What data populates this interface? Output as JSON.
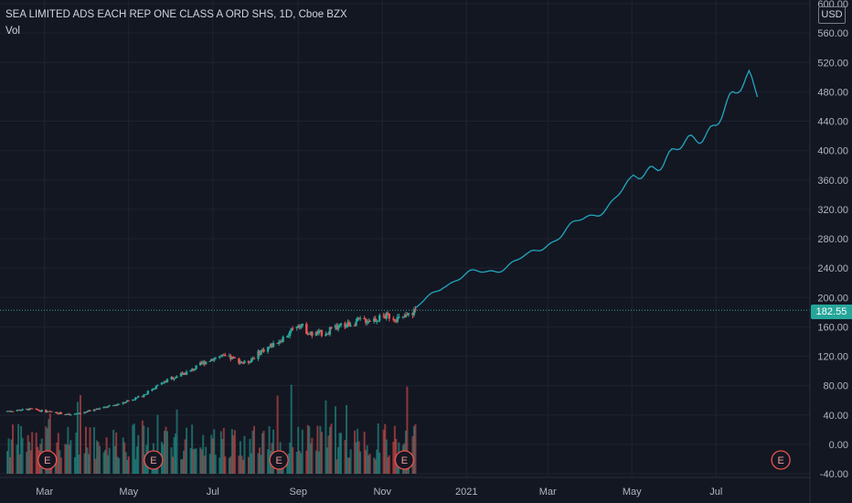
{
  "header": {
    "title": "SEA LIMITED ADS EACH REP ONE CLASS A ORD SHS, 1D, Cboe BZX",
    "volume_label": "Vol"
  },
  "price_axis": {
    "currency": "USD",
    "ticks": [
      "600.00",
      "560.00",
      "520.00",
      "480.00",
      "440.00",
      "400.00",
      "360.00",
      "320.00",
      "280.00",
      "240.00",
      "200.00",
      "160.00",
      "120.00",
      "80.00",
      "40.00",
      "0.00",
      "-40.00"
    ],
    "current_price": "182.55"
  },
  "time_axis": {
    "ticks": [
      "Mar",
      "May",
      "Jul",
      "Sep",
      "Nov",
      "2021",
      "Mar",
      "May",
      "Jul"
    ]
  },
  "events": {
    "marker_label": "E",
    "count": 5
  },
  "colors": {
    "background": "#131722",
    "grid": "#1f2330",
    "up": "#26a69a",
    "down": "#ef5350",
    "forecast": "#22a7c0",
    "axis_text": "#b2b5be"
  },
  "chart_data": {
    "type": "candlestick",
    "title": "SEA LIMITED ADS EACH REP ONE CLASS A ORD SHS, 1D, Cboe BZX",
    "ylim": [
      -40,
      600
    ],
    "y_unit": "USD",
    "current_price": 182.55,
    "series": [
      {
        "name": "Price",
        "type": "candlestick-close-approx",
        "points": [
          [
            "2020-02-01",
            45
          ],
          [
            "2020-02-20",
            48
          ],
          [
            "2020-03-01",
            45
          ],
          [
            "2020-03-10",
            43
          ],
          [
            "2020-03-20",
            40
          ],
          [
            "2020-04-01",
            45
          ],
          [
            "2020-04-20",
            53
          ],
          [
            "2020-05-01",
            60
          ],
          [
            "2020-05-10",
            65
          ],
          [
            "2020-05-20",
            78
          ],
          [
            "2020-06-01",
            90
          ],
          [
            "2020-06-15",
            100
          ],
          [
            "2020-06-25",
            112
          ],
          [
            "2020-07-05",
            120
          ],
          [
            "2020-07-15",
            117
          ],
          [
            "2020-07-25",
            110
          ],
          [
            "2020-08-05",
            127
          ],
          [
            "2020-08-15",
            137
          ],
          [
            "2020-08-25",
            150
          ],
          [
            "2020-09-01",
            165
          ],
          [
            "2020-09-10",
            150
          ],
          [
            "2020-09-20",
            152
          ],
          [
            "2020-10-01",
            160
          ],
          [
            "2020-10-15",
            168
          ],
          [
            "2020-10-25",
            170
          ],
          [
            "2020-11-05",
            175
          ],
          [
            "2020-11-15",
            170
          ],
          [
            "2020-11-25",
            182.55
          ]
        ]
      },
      {
        "name": "Forecast",
        "type": "line",
        "points": [
          [
            "2020-11-25",
            182.55
          ],
          [
            "2020-12-15",
            218
          ],
          [
            "2021-01-01",
            230
          ],
          [
            "2021-01-15",
            235
          ],
          [
            "2021-02-01",
            245
          ],
          [
            "2021-02-15",
            255
          ],
          [
            "2021-03-01",
            275
          ],
          [
            "2021-03-15",
            292
          ],
          [
            "2021-04-01",
            310
          ],
          [
            "2021-04-15",
            330
          ],
          [
            "2021-05-01",
            355
          ],
          [
            "2021-05-15",
            380
          ],
          [
            "2021-06-01",
            395
          ],
          [
            "2021-06-15",
            415
          ],
          [
            "2021-07-01",
            440
          ],
          [
            "2021-07-15",
            470
          ],
          [
            "2021-07-25",
            505
          ],
          [
            "2021-08-01",
            485
          ]
        ]
      }
    ],
    "volume": {
      "name": "Vol",
      "range": "2020-02 to 2020-11"
    },
    "earnings_events": [
      "2020-03-03",
      "2020-05-19",
      "2020-08-18",
      "2020-11-17",
      "2021-08-17"
    ],
    "x_ticks": [
      "Mar",
      "May",
      "Jul",
      "Sep",
      "Nov",
      "2021",
      "Mar",
      "May",
      "Jul"
    ],
    "grid": true
  }
}
